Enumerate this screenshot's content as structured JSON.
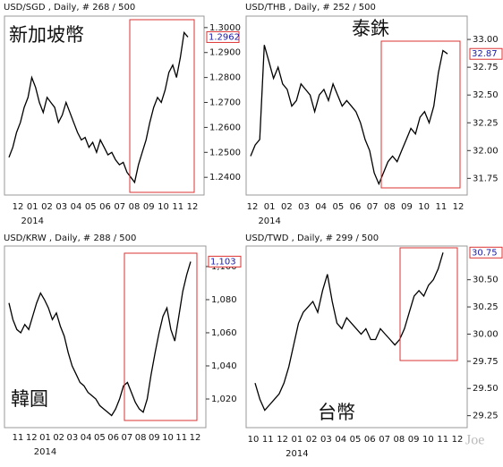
{
  "chart_data": [
    {
      "type": "line",
      "title": "USD/SGD , Daily, # 268 / 500",
      "annotation": "新加坡幣",
      "color": "#000000",
      "xtick_labels": [
        "12",
        "01",
        "02",
        "03",
        "04",
        "05",
        "06",
        "07",
        "08",
        "09",
        "10",
        "11",
        "12"
      ],
      "year_label": "2014",
      "last_label": "1.2962",
      "values": [
        1.248,
        1.252,
        1.258,
        1.262,
        1.268,
        1.272,
        1.28,
        1.276,
        1.27,
        1.266,
        1.272,
        1.27,
        1.268,
        1.262,
        1.265,
        1.27,
        1.266,
        1.262,
        1.258,
        1.255,
        1.256,
        1.252,
        1.254,
        1.25,
        1.255,
        1.252,
        1.249,
        1.25,
        1.247,
        1.245,
        1.246,
        1.242,
        1.24,
        1.238,
        1.245,
        1.25,
        1.255,
        1.262,
        1.268,
        1.272,
        1.27,
        1.275,
        1.282,
        1.285,
        1.28,
        1.288,
        1.298,
        1.2962
      ],
      "ylim": [
        1.2329,
        1.3046
      ],
      "yticks": [
        {
          "value": 1.24,
          "label": "1.2400"
        },
        {
          "value": 1.25,
          "label": "1.2500"
        },
        {
          "value": 1.26,
          "label": "1.2600"
        },
        {
          "value": 1.27,
          "label": "1.2700"
        },
        {
          "value": 1.28,
          "label": "1.2800"
        },
        {
          "value": 1.29,
          "label": "1.2900"
        },
        {
          "value": 1.3,
          "label": "1.3000"
        }
      ]
    },
    {
      "type": "line",
      "title": "USD/THB , Daily, # 252 / 500",
      "annotation": "泰銖",
      "color": "#000000",
      "xtick_labels": [
        "12",
        "01",
        "02",
        "03",
        "04",
        "05",
        "06",
        "07",
        "08",
        "09",
        "10",
        "11",
        "12"
      ],
      "year_label": "2014",
      "last_label": "32.87",
      "values": [
        31.95,
        32.05,
        32.1,
        32.95,
        32.8,
        32.65,
        32.75,
        32.6,
        32.55,
        32.4,
        32.45,
        32.6,
        32.55,
        32.5,
        32.35,
        32.5,
        32.55,
        32.45,
        32.6,
        32.5,
        32.4,
        32.45,
        32.4,
        32.35,
        32.25,
        32.1,
        32.0,
        31.8,
        31.7,
        31.8,
        31.9,
        31.95,
        31.9,
        32.0,
        32.1,
        32.2,
        32.15,
        32.3,
        32.35,
        32.25,
        32.4,
        32.7,
        32.9,
        32.87
      ],
      "ylim": [
        31.6,
        33.21
      ],
      "yticks": [
        {
          "value": 31.75,
          "label": "31.75"
        },
        {
          "value": 32,
          "label": "32.00"
        },
        {
          "value": 32.25,
          "label": "32.25"
        },
        {
          "value": 32.5,
          "label": "32.50"
        },
        {
          "value": 32.75,
          "label": "32.75"
        },
        {
          "value": 33,
          "label": "33.00"
        }
      ]
    },
    {
      "type": "line",
      "title": "USD/KRW , Daily, # 288 / 500",
      "annotation": "韓圓",
      "color": "#000000",
      "xtick_labels": [
        "11",
        "12",
        "01",
        "02",
        "03",
        "04",
        "05",
        "06",
        "07",
        "08",
        "09",
        "10",
        "11",
        "12"
      ],
      "year_label": "2014",
      "last_label": "1,103",
      "values": [
        1078,
        1068,
        1062,
        1060,
        1065,
        1062,
        1070,
        1078,
        1084,
        1080,
        1075,
        1068,
        1072,
        1064,
        1058,
        1048,
        1040,
        1035,
        1030,
        1028,
        1024,
        1022,
        1020,
        1016,
        1014,
        1012,
        1010,
        1014,
        1020,
        1028,
        1030,
        1024,
        1018,
        1014,
        1012,
        1020,
        1035,
        1048,
        1060,
        1070,
        1075,
        1062,
        1055,
        1070,
        1085,
        1095,
        1103
      ],
      "ylim": [
        1002.7,
        1112.4
      ],
      "yticks": [
        {
          "value": 1020,
          "label": "1,020"
        },
        {
          "value": 1040,
          "label": "1,040"
        },
        {
          "value": 1060,
          "label": "1,060"
        },
        {
          "value": 1080,
          "label": "1,080"
        },
        {
          "value": 1100,
          "label": "1,100"
        }
      ]
    },
    {
      "type": "line",
      "title": "USD/TWD , Daily, # 299 / 500",
      "annotation": "台幣",
      "color": "#000000",
      "xtick_labels": [
        "10",
        "11",
        "12",
        "01",
        "02",
        "03",
        "04",
        "05",
        "06",
        "07",
        "08",
        "09",
        "10",
        "11",
        "12"
      ],
      "year_label": "2014",
      "last_label": "30.75",
      "watermark": "Joe",
      "values": [
        29.55,
        29.4,
        29.3,
        29.35,
        29.4,
        29.45,
        29.55,
        29.7,
        29.9,
        30.1,
        30.2,
        30.25,
        30.3,
        30.2,
        30.4,
        30.55,
        30.3,
        30.1,
        30.05,
        30.15,
        30.1,
        30.05,
        30.0,
        30.05,
        29.95,
        29.95,
        30.05,
        30.0,
        29.95,
        29.9,
        29.95,
        30.05,
        30.2,
        30.35,
        30.4,
        30.35,
        30.45,
        30.5,
        30.6,
        30.75
      ],
      "ylim": [
        29.14,
        30.81
      ],
      "yticks": [
        {
          "value": 29.25,
          "label": "29.25"
        },
        {
          "value": 29.5,
          "label": "29.50"
        },
        {
          "value": 29.75,
          "label": "29.75"
        },
        {
          "value": 30,
          "label": "30.00"
        },
        {
          "value": 30.25,
          "label": "30.25"
        },
        {
          "value": 30.5,
          "label": "30.50"
        }
      ]
    }
  ]
}
